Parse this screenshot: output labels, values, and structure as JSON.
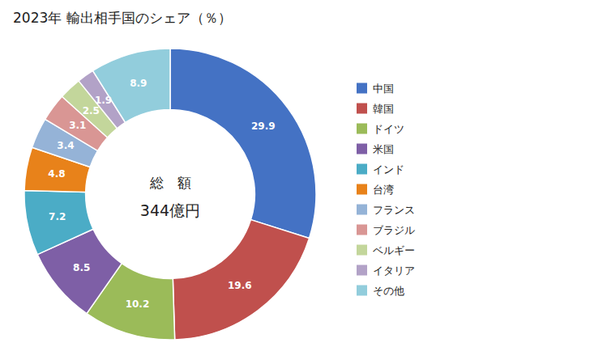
{
  "chart_data": {
    "type": "donut",
    "title": "2023年 輸出相手国のシェア（％）",
    "annotations": [
      "総　額",
      "344億円"
    ],
    "categories": [
      "中国",
      "韓国",
      "ドイツ",
      "米国",
      "インド",
      "台湾",
      "フランス",
      "ブラジル",
      "ベルギー",
      "イタリア",
      "その他"
    ],
    "values": [
      29.9,
      19.6,
      10.2,
      8.5,
      7.2,
      4.8,
      3.4,
      3.1,
      2.5,
      1.9,
      8.9
    ],
    "colors": [
      "#4472C4",
      "#C0504D",
      "#9BBB59",
      "#7E5FA6",
      "#4BACC6",
      "#E8821A",
      "#95B3D7",
      "#D99694",
      "#C3D69B",
      "#B2A2C7",
      "#92CDDC"
    ],
    "data_labels": true,
    "legend": "right"
  }
}
